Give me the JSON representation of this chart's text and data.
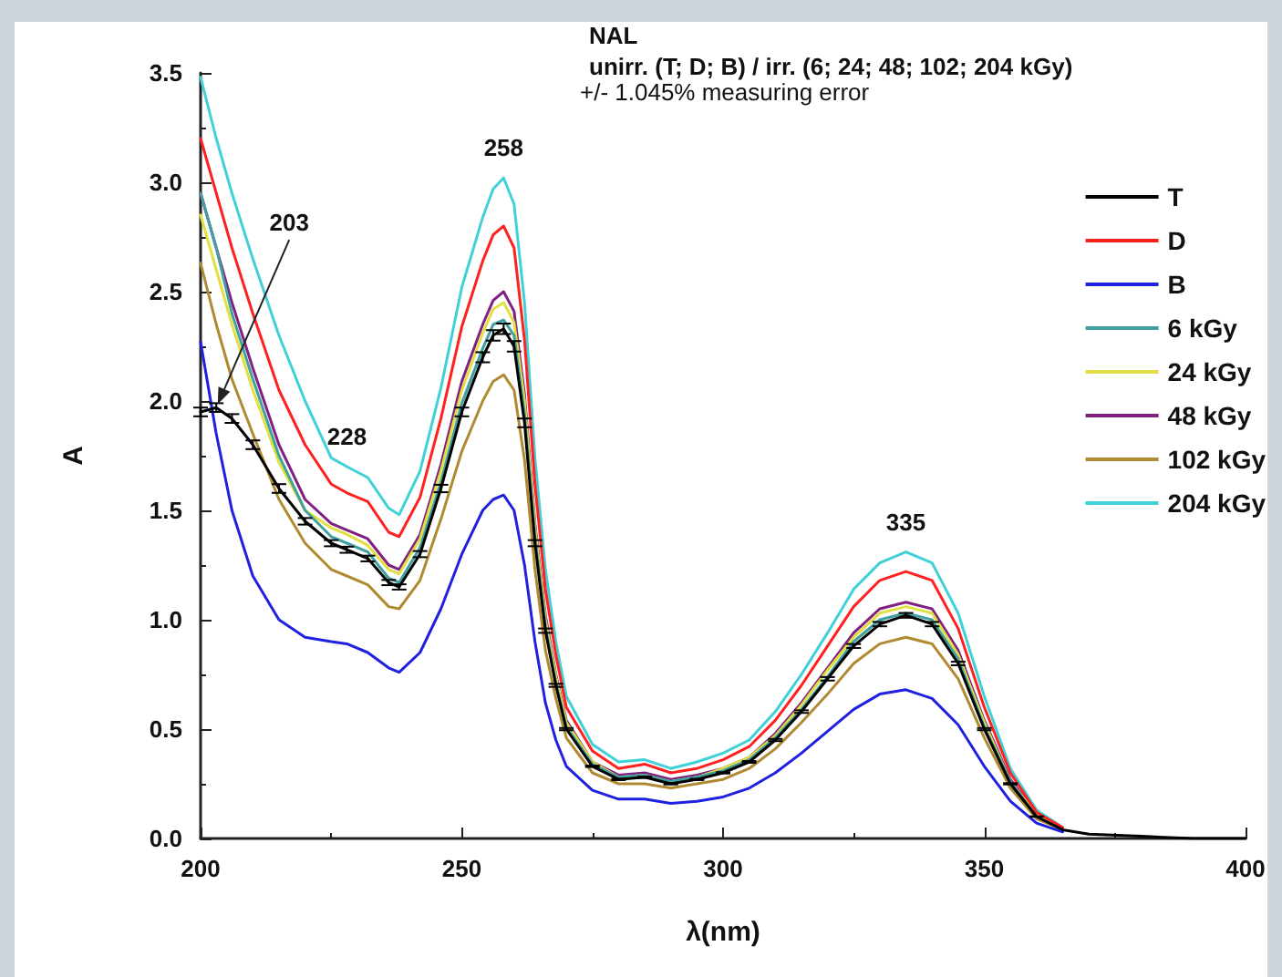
{
  "chart_data": {
    "type": "line",
    "title": "NAL",
    "subtitle": "unirr. (T; D; B) / irr. (6; 24; 48; 102; 204 kGy)",
    "xlabel": "λ(nm)",
    "ylabel": "A",
    "annotations": [
      "+/- 1.045% measuring error",
      "203",
      {
        "text": "228",
        "x": 228,
        "y": 1.7
      },
      {
        "text": "258",
        "x": 258,
        "y": 3.02
      },
      {
        "text": "335",
        "x": 335,
        "y": 1.31
      }
    ],
    "x": [
      200,
      203,
      206,
      210,
      215,
      220,
      225,
      228,
      232,
      236,
      238,
      242,
      246,
      250,
      254,
      256,
      258,
      260,
      262,
      264,
      266,
      268,
      270,
      275,
      280,
      285,
      290,
      295,
      300,
      305,
      310,
      315,
      320,
      325,
      330,
      335,
      340,
      345,
      350,
      355,
      360,
      365,
      370,
      380,
      390,
      400
    ],
    "series": [
      {
        "name": "T",
        "color": "#000000",
        "values": [
          1.95,
          1.97,
          1.92,
          1.8,
          1.6,
          1.45,
          1.35,
          1.32,
          1.28,
          1.17,
          1.15,
          1.3,
          1.6,
          1.95,
          2.2,
          2.3,
          2.33,
          2.25,
          1.9,
          1.35,
          0.95,
          0.7,
          0.5,
          0.33,
          0.27,
          0.28,
          0.25,
          0.27,
          0.3,
          0.35,
          0.45,
          0.58,
          0.73,
          0.88,
          0.98,
          1.02,
          0.98,
          0.8,
          0.5,
          0.25,
          0.1,
          0.04,
          0.02,
          0.01,
          0,
          0
        ],
        "errors": [
          0.02,
          0.02,
          0.02,
          0.02,
          0.02,
          0.015,
          0.014,
          0.014,
          0.013,
          0.012,
          0.012,
          0.014,
          0.017,
          0.02,
          0.023,
          0.024,
          0.024,
          0.024,
          0.02,
          0.014,
          0.01,
          0.007,
          0.005,
          0.003,
          0.003,
          0.003,
          0.003,
          0.003,
          0.003,
          0.004,
          0.005,
          0.006,
          0.008,
          0.009,
          0.01,
          0.011,
          0.01,
          0.008,
          0.005,
          0.003,
          0.001,
          null,
          null,
          null,
          null,
          null
        ]
      },
      {
        "name": "D",
        "color": "#ff2020",
        "values": [
          3.2,
          2.95,
          2.7,
          2.4,
          2.05,
          1.8,
          1.62,
          1.58,
          1.54,
          1.4,
          1.38,
          1.56,
          1.92,
          2.34,
          2.64,
          2.76,
          2.8,
          2.7,
          2.28,
          1.62,
          1.14,
          0.84,
          0.6,
          0.4,
          0.32,
          0.34,
          0.3,
          0.32,
          0.36,
          0.42,
          0.54,
          0.7,
          0.88,
          1.06,
          1.18,
          1.22,
          1.18,
          0.96,
          0.6,
          0.3,
          0.12,
          0.05,
          null,
          null,
          null,
          null
        ]
      },
      {
        "name": "B",
        "color": "#2020e0",
        "values": [
          2.27,
          1.85,
          1.5,
          1.2,
          1.0,
          0.92,
          0.9,
          0.89,
          0.85,
          0.78,
          0.76,
          0.85,
          1.05,
          1.3,
          1.5,
          1.55,
          1.57,
          1.5,
          1.25,
          0.9,
          0.62,
          0.45,
          0.33,
          0.22,
          0.18,
          0.18,
          0.16,
          0.17,
          0.19,
          0.23,
          0.3,
          0.39,
          0.49,
          0.59,
          0.66,
          0.68,
          0.64,
          0.52,
          0.33,
          0.17,
          0.07,
          0.03,
          null,
          null,
          null,
          null
        ]
      },
      {
        "name": "6 kGy",
        "color": "#40a0a0",
        "values": [
          2.95,
          2.7,
          2.4,
          2.1,
          1.75,
          1.5,
          1.38,
          1.35,
          1.31,
          1.19,
          1.17,
          1.33,
          1.63,
          1.99,
          2.24,
          2.35,
          2.37,
          2.3,
          1.94,
          1.38,
          0.97,
          0.71,
          0.51,
          0.34,
          0.28,
          0.29,
          0.26,
          0.28,
          0.31,
          0.36,
          0.46,
          0.59,
          0.74,
          0.9,
          1.0,
          1.03,
          1.0,
          0.82,
          0.51,
          0.26,
          0.1,
          0.04,
          null,
          null,
          null,
          null
        ]
      },
      {
        "name": "24 kGy",
        "color": "#e0e040",
        "values": [
          2.85,
          2.6,
          2.35,
          2.05,
          1.72,
          1.5,
          1.42,
          1.39,
          1.34,
          1.23,
          1.21,
          1.37,
          1.68,
          2.05,
          2.31,
          2.42,
          2.45,
          2.36,
          2.0,
          1.42,
          1.0,
          0.74,
          0.53,
          0.35,
          0.28,
          0.29,
          0.26,
          0.28,
          0.32,
          0.37,
          0.47,
          0.61,
          0.77,
          0.92,
          1.03,
          1.06,
          1.03,
          0.84,
          0.53,
          0.26,
          0.11,
          0.04,
          null,
          null,
          null,
          null
        ]
      },
      {
        "name": "48 kGy",
        "color": "#802080",
        "values": [
          2.95,
          2.7,
          2.45,
          2.15,
          1.8,
          1.55,
          1.44,
          1.41,
          1.37,
          1.25,
          1.23,
          1.39,
          1.71,
          2.09,
          2.35,
          2.46,
          2.5,
          2.41,
          2.03,
          1.44,
          1.02,
          0.75,
          0.54,
          0.35,
          0.29,
          0.3,
          0.27,
          0.29,
          0.32,
          0.37,
          0.48,
          0.62,
          0.78,
          0.94,
          1.05,
          1.08,
          1.05,
          0.86,
          0.54,
          0.27,
          0.11,
          0.04,
          null,
          null,
          null,
          null
        ]
      },
      {
        "name": "102 kGy",
        "color": "#b08a30",
        "values": [
          2.63,
          2.35,
          2.1,
          1.85,
          1.55,
          1.35,
          1.23,
          1.2,
          1.16,
          1.06,
          1.05,
          1.18,
          1.46,
          1.77,
          2.0,
          2.09,
          2.12,
          2.05,
          1.73,
          1.23,
          0.86,
          0.64,
          0.46,
          0.3,
          0.25,
          0.25,
          0.23,
          0.25,
          0.27,
          0.32,
          0.41,
          0.53,
          0.66,
          0.8,
          0.89,
          0.92,
          0.89,
          0.73,
          0.46,
          0.23,
          0.09,
          0.04,
          null,
          null,
          null,
          null
        ]
      },
      {
        "name": "204 kGy",
        "color": "#40d0d8",
        "values": [
          3.48,
          3.2,
          2.95,
          2.65,
          2.3,
          2.0,
          1.74,
          1.7,
          1.65,
          1.51,
          1.48,
          1.68,
          2.06,
          2.52,
          2.84,
          2.97,
          3.02,
          2.9,
          2.45,
          1.74,
          1.23,
          0.9,
          0.65,
          0.43,
          0.35,
          0.36,
          0.32,
          0.35,
          0.39,
          0.45,
          0.58,
          0.75,
          0.94,
          1.14,
          1.26,
          1.31,
          1.26,
          1.03,
          0.65,
          0.32,
          0.13,
          0.05,
          null,
          null,
          null,
          null
        ]
      }
    ],
    "xlim": [
      200,
      400
    ],
    "xticks": [
      200,
      250,
      300,
      350,
      400
    ],
    "ylim": [
      0,
      3.5
    ],
    "yticks": [
      {
        "value": 0,
        "label": "0.0"
      },
      0.5,
      {
        "value": 1,
        "label": "1.0"
      },
      1.5,
      {
        "value": 2,
        "label": "2.0"
      },
      2.5,
      {
        "value": 3,
        "label": "3.0"
      },
      3.5
    ],
    "grid": false,
    "legend": "top right",
    "marker": "none",
    "line_style": "solid"
  }
}
